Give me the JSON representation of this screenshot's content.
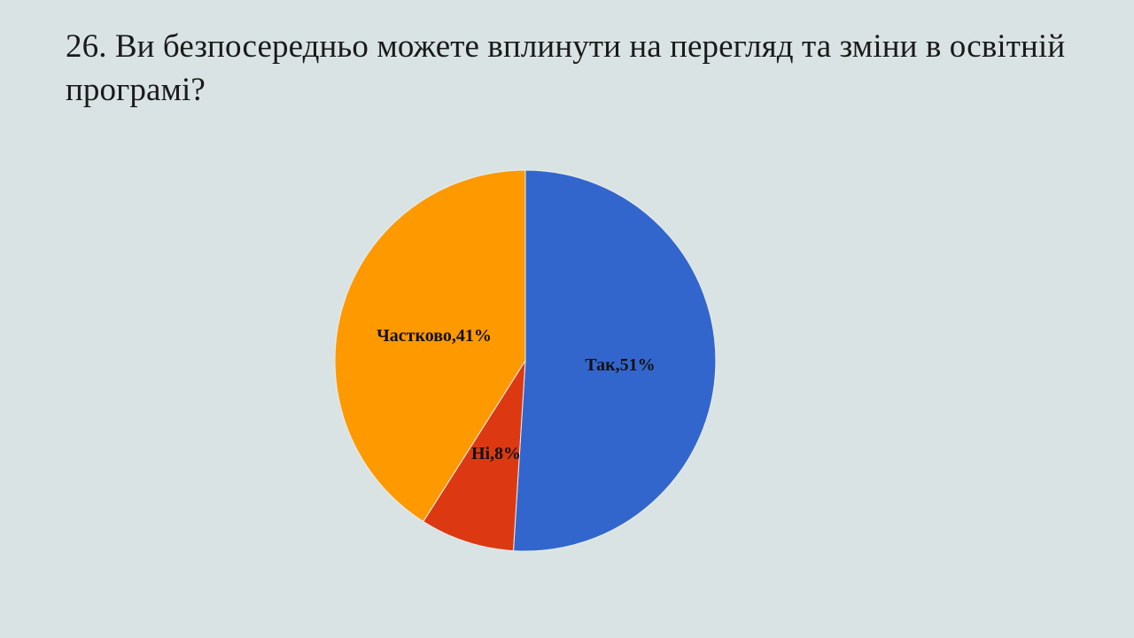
{
  "slide": {
    "title": "26. Ви безпосередньо можете вплинути на перегляд та зміни в освітній програмі?"
  },
  "chart_data": {
    "type": "pie",
    "title": "",
    "categories": [
      "Так",
      "Ні",
      "Частково"
    ],
    "values": [
      51,
      8,
      41
    ],
    "unit": "%",
    "data_labels": [
      "Так,51%",
      "Ні,8%",
      "Частково,41%"
    ],
    "colors": [
      "#3366cc",
      "#dc3912",
      "#ff9900"
    ],
    "start_angle": "12 o'clock",
    "direction": "clockwise",
    "legend": "none"
  }
}
